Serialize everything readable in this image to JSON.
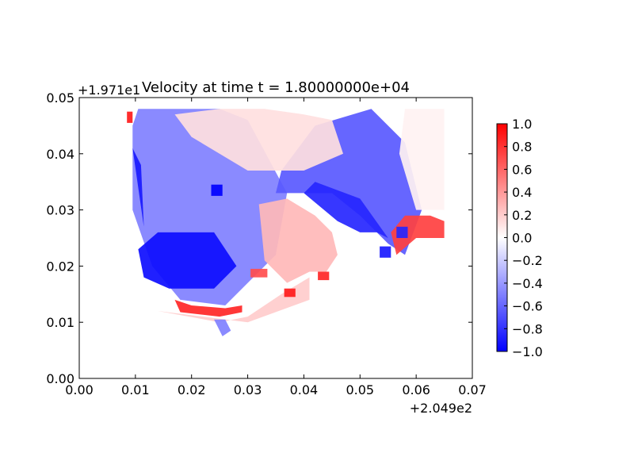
{
  "chart_data": {
    "type": "heatmap",
    "title": "Velocity at time t = 1.80000000e+04",
    "xlabel": "",
    "ylabel": "",
    "x_offset_label": "+2.049e2",
    "y_offset_label": "+1.971e1",
    "xlim": [
      0.0,
      0.07
    ],
    "ylim": [
      0.0,
      0.05
    ],
    "x_ticks": [
      "0.00",
      "0.01",
      "0.02",
      "0.03",
      "0.04",
      "0.05",
      "0.06",
      "0.07"
    ],
    "y_ticks": [
      "0.00",
      "0.01",
      "0.02",
      "0.03",
      "0.04",
      "0.05"
    ],
    "colormap": "bwr",
    "colors": {
      "low": "#0000ff",
      "mid": "#ffffff",
      "high": "#ff0000"
    },
    "clim": [
      -1.0,
      1.0
    ],
    "colorbar_ticks": [
      "1.0",
      "0.8",
      "0.6",
      "0.4",
      "0.2",
      "0.0",
      "−0.2",
      "−0.4",
      "−0.6",
      "−0.8",
      "−1.0"
    ],
    "grid": false,
    "regions": [
      {
        "x": [
          0.0095,
          0.0095,
          0.013,
          0.018,
          0.026,
          0.03,
          0.035,
          0.037,
          0.03,
          0.025,
          0.0105,
          0.0095
        ],
        "y": [
          0.045,
          0.03,
          0.02,
          0.014,
          0.013,
          0.017,
          0.022,
          0.033,
          0.046,
          0.048,
          0.048,
          0.045
        ],
        "value": -0.5
      },
      {
        "x": [
          0.0105,
          0.0115,
          0.016,
          0.024,
          0.028,
          0.024,
          0.014,
          0.0105
        ],
        "y": [
          0.023,
          0.018,
          0.016,
          0.016,
          0.02,
          0.026,
          0.026,
          0.023
        ],
        "value": -0.95
      },
      {
        "x": [
          0.0095,
          0.0105,
          0.0115,
          0.011,
          0.0095
        ],
        "y": [
          0.041,
          0.034,
          0.027,
          0.038,
          0.041
        ],
        "value": -0.9
      },
      {
        "x": [
          0.035,
          0.045,
          0.05,
          0.055,
          0.058,
          0.061,
          0.058,
          0.052,
          0.042,
          0.036,
          0.035
        ],
        "y": [
          0.033,
          0.033,
          0.029,
          0.024,
          0.022,
          0.03,
          0.042,
          0.048,
          0.045,
          0.037,
          0.033
        ],
        "value": -0.65
      },
      {
        "x": [
          0.04,
          0.046,
          0.05,
          0.053,
          0.055,
          0.05,
          0.042,
          0.04
        ],
        "y": [
          0.033,
          0.028,
          0.026,
          0.026,
          0.025,
          0.032,
          0.035,
          0.033
        ],
        "value": -0.85
      },
      {
        "x": [
          0.017,
          0.025,
          0.033,
          0.04,
          0.045,
          0.047,
          0.04,
          0.03,
          0.02,
          0.017
        ],
        "y": [
          0.047,
          0.048,
          0.048,
          0.047,
          0.046,
          0.04,
          0.037,
          0.037,
          0.043,
          0.047
        ],
        "value": 0.12
      },
      {
        "x": [
          0.058,
          0.065,
          0.065,
          0.06,
          0.057,
          0.058
        ],
        "y": [
          0.048,
          0.048,
          0.03,
          0.03,
          0.04,
          0.048
        ],
        "value": 0.05
      },
      {
        "x": [
          0.032,
          0.037,
          0.042,
          0.045,
          0.046,
          0.044,
          0.041,
          0.037,
          0.033,
          0.032
        ],
        "y": [
          0.031,
          0.032,
          0.029,
          0.026,
          0.022,
          0.019,
          0.019,
          0.017,
          0.021,
          0.031
        ],
        "value": 0.28
      },
      {
        "x": [
          0.0555,
          0.058,
          0.0625,
          0.065,
          0.065,
          0.06,
          0.0565,
          0.0555
        ],
        "y": [
          0.026,
          0.029,
          0.029,
          0.028,
          0.025,
          0.025,
          0.022,
          0.026
        ],
        "value": 0.75
      },
      {
        "x": [
          0.017,
          0.02,
          0.026,
          0.029,
          0.029,
          0.025,
          0.018,
          0.017
        ],
        "y": [
          0.014,
          0.013,
          0.0125,
          0.013,
          0.0118,
          0.011,
          0.0118,
          0.014
        ],
        "value": 0.85
      },
      {
        "x": [
          0.014,
          0.025,
          0.03,
          0.036,
          0.041,
          0.041,
          0.03,
          0.014
        ],
        "y": [
          0.012,
          0.01,
          0.011,
          0.015,
          0.018,
          0.014,
          0.01,
          0.012
        ],
        "value": 0.2
      },
      {
        "x": [
          0.0235,
          0.0255,
          0.0255,
          0.0235
        ],
        "y": [
          0.0345,
          0.0345,
          0.0325,
          0.0325
        ],
        "value": -1.0
      },
      {
        "x": [
          0.0365,
          0.0385,
          0.0385,
          0.0365
        ],
        "y": [
          0.016,
          0.016,
          0.0145,
          0.0145
        ],
        "value": 0.9
      },
      {
        "x": [
          0.0425,
          0.0445,
          0.0445,
          0.0425
        ],
        "y": [
          0.019,
          0.019,
          0.0175,
          0.0175
        ],
        "value": 0.85
      },
      {
        "x": [
          0.0535,
          0.0555,
          0.0555,
          0.0535
        ],
        "y": [
          0.0235,
          0.0235,
          0.0215,
          0.0215
        ],
        "value": -0.9
      },
      {
        "x": [
          0.0565,
          0.0585,
          0.0585,
          0.0565
        ],
        "y": [
          0.027,
          0.027,
          0.025,
          0.025
        ],
        "value": -0.85
      },
      {
        "x": [
          0.024,
          0.026,
          0.027,
          0.0255,
          0.024
        ],
        "y": [
          0.0105,
          0.0105,
          0.0085,
          0.0075,
          0.0105
        ],
        "value": -0.5
      },
      {
        "x": [
          0.0085,
          0.0095,
          0.0095,
          0.0085
        ],
        "y": [
          0.0475,
          0.0475,
          0.0455,
          0.0455
        ],
        "value": 0.9
      },
      {
        "x": [
          0.0305,
          0.0335,
          0.0335,
          0.0305
        ],
        "y": [
          0.0195,
          0.0195,
          0.018,
          0.018
        ],
        "value": 0.7
      }
    ]
  }
}
